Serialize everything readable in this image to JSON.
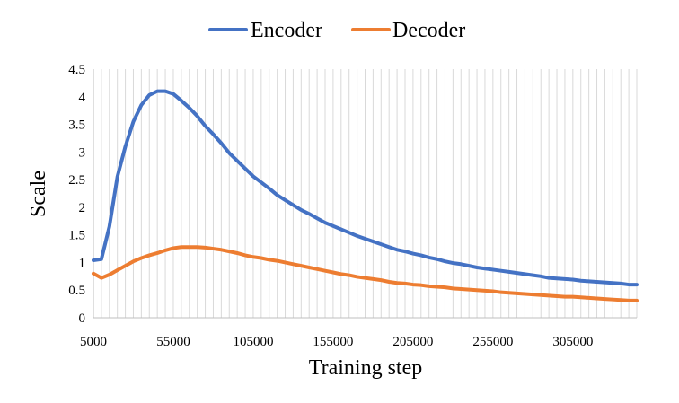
{
  "chart_data": {
    "type": "line",
    "title": "",
    "xlabel": "Training step",
    "ylabel": "Scale",
    "ylim": [
      0,
      4.5
    ],
    "xlim": [
      5000,
      345000
    ],
    "yticks": [
      "0",
      "0.5",
      "1",
      "1.5",
      "2",
      "2.5",
      "3",
      "3.5",
      "4",
      "4.5"
    ],
    "xticks": [
      "5000",
      "55000",
      "105000",
      "155000",
      "205000",
      "255000",
      "305000"
    ],
    "grid": "vertical gridlines",
    "legend": "top-center",
    "series": [
      {
        "name": "Encoder",
        "color": "#4472C4",
        "x": [
          5000,
          10000,
          15000,
          20000,
          25000,
          30000,
          35000,
          40000,
          45000,
          50000,
          55000,
          60000,
          65000,
          70000,
          75000,
          80000,
          85000,
          90000,
          95000,
          100000,
          105000,
          110000,
          115000,
          120000,
          125000,
          130000,
          135000,
          140000,
          145000,
          150000,
          155000,
          160000,
          165000,
          170000,
          175000,
          180000,
          185000,
          190000,
          195000,
          200000,
          205000,
          210000,
          215000,
          220000,
          225000,
          230000,
          235000,
          240000,
          245000,
          250000,
          255000,
          260000,
          265000,
          270000,
          275000,
          280000,
          285000,
          290000,
          295000,
          300000,
          305000,
          310000,
          315000,
          320000,
          325000,
          330000,
          335000,
          340000,
          345000
        ],
        "values": [
          1.04,
          1.06,
          1.65,
          2.55,
          3.1,
          3.55,
          3.85,
          4.03,
          4.1,
          4.1,
          4.05,
          3.93,
          3.8,
          3.65,
          3.47,
          3.32,
          3.16,
          2.98,
          2.84,
          2.7,
          2.56,
          2.45,
          2.34,
          2.22,
          2.13,
          2.04,
          1.95,
          1.88,
          1.8,
          1.72,
          1.66,
          1.6,
          1.54,
          1.48,
          1.43,
          1.38,
          1.33,
          1.28,
          1.23,
          1.2,
          1.16,
          1.13,
          1.09,
          1.06,
          1.02,
          0.99,
          0.97,
          0.94,
          0.91,
          0.89,
          0.87,
          0.85,
          0.83,
          0.81,
          0.79,
          0.77,
          0.75,
          0.72,
          0.71,
          0.7,
          0.69,
          0.67,
          0.66,
          0.65,
          0.64,
          0.63,
          0.62,
          0.6,
          0.6
        ]
      },
      {
        "name": "Decoder",
        "color": "#ED7D31",
        "x": [
          5000,
          10000,
          15000,
          20000,
          25000,
          30000,
          35000,
          40000,
          45000,
          50000,
          55000,
          60000,
          65000,
          70000,
          75000,
          80000,
          85000,
          90000,
          95000,
          100000,
          105000,
          110000,
          115000,
          120000,
          125000,
          130000,
          135000,
          140000,
          145000,
          150000,
          155000,
          160000,
          165000,
          170000,
          175000,
          180000,
          185000,
          190000,
          195000,
          200000,
          205000,
          210000,
          215000,
          220000,
          225000,
          230000,
          235000,
          240000,
          245000,
          250000,
          255000,
          260000,
          265000,
          270000,
          275000,
          280000,
          285000,
          290000,
          295000,
          300000,
          305000,
          310000,
          315000,
          320000,
          325000,
          330000,
          335000,
          340000,
          345000
        ],
        "values": [
          0.8,
          0.72,
          0.78,
          0.86,
          0.94,
          1.02,
          1.08,
          1.13,
          1.17,
          1.22,
          1.26,
          1.28,
          1.28,
          1.28,
          1.27,
          1.25,
          1.23,
          1.2,
          1.17,
          1.13,
          1.1,
          1.08,
          1.05,
          1.03,
          1.0,
          0.97,
          0.94,
          0.91,
          0.88,
          0.85,
          0.82,
          0.79,
          0.77,
          0.74,
          0.72,
          0.7,
          0.68,
          0.65,
          0.63,
          0.62,
          0.6,
          0.59,
          0.57,
          0.56,
          0.55,
          0.53,
          0.52,
          0.51,
          0.5,
          0.49,
          0.48,
          0.46,
          0.45,
          0.44,
          0.43,
          0.42,
          0.41,
          0.4,
          0.39,
          0.38,
          0.38,
          0.37,
          0.36,
          0.35,
          0.34,
          0.33,
          0.32,
          0.31,
          0.31
        ]
      }
    ]
  }
}
